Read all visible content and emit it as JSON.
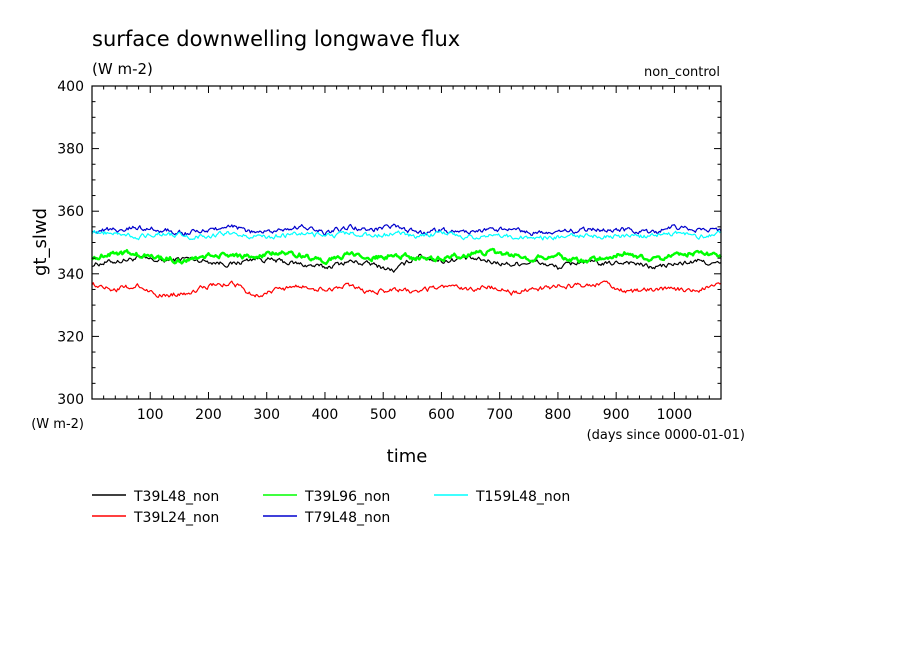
{
  "chart_data": {
    "type": "line",
    "title": "surface downwelling longwave flux",
    "subtitle": "(W m-2)",
    "corner_label": "non_control",
    "xlabel": "time",
    "xunit": "(days since 0000-01-01)",
    "ylabel": "gt_slwd",
    "yunit": "(W m-2)",
    "xlim": [
      0,
      1080
    ],
    "ylim": [
      300,
      400
    ],
    "x_ticks": [
      100,
      200,
      300,
      400,
      500,
      600,
      700,
      800,
      900,
      1000
    ],
    "y_ticks": [
      300,
      320,
      340,
      360,
      380,
      400
    ],
    "grid": false,
    "legend_position": "bottom",
    "series": [
      {
        "name": "T39L48_non",
        "color": "#000000",
        "x": [
          0,
          40,
          80,
          120,
          160,
          200,
          240,
          280,
          320,
          360,
          400,
          440,
          480,
          520,
          560,
          600,
          640,
          680,
          720,
          760,
          800,
          840,
          880,
          920,
          960,
          1000,
          1040,
          1080
        ],
        "values": [
          343,
          344,
          345,
          344,
          345,
          344,
          343,
          345,
          344,
          343,
          342,
          344,
          343,
          341,
          346,
          344,
          345,
          344,
          343,
          344,
          342,
          344,
          343,
          344,
          342,
          343,
          344,
          343
        ]
      },
      {
        "name": "T39L24_non",
        "color": "#ff0000",
        "x": [
          0,
          40,
          80,
          120,
          160,
          200,
          240,
          280,
          320,
          360,
          400,
          440,
          480,
          520,
          560,
          600,
          640,
          680,
          720,
          760,
          800,
          840,
          880,
          920,
          960,
          1000,
          1040,
          1080
        ],
        "values": [
          337,
          335,
          336,
          333,
          334,
          336,
          337,
          333,
          335,
          336,
          335,
          336,
          334,
          335,
          334,
          336,
          335,
          336,
          334,
          335,
          336,
          336,
          337,
          334,
          335,
          335,
          335,
          337
        ]
      },
      {
        "name": "T39L96_non",
        "color": "#00ff00",
        "x": [
          0,
          40,
          80,
          120,
          160,
          200,
          240,
          280,
          320,
          360,
          400,
          440,
          480,
          520,
          560,
          600,
          640,
          680,
          720,
          760,
          800,
          840,
          880,
          920,
          960,
          1000,
          1040,
          1080
        ],
        "values": [
          345,
          347,
          346,
          345,
          344,
          346,
          346,
          345,
          347,
          346,
          344,
          346,
          345,
          346,
          345,
          345,
          346,
          347,
          346,
          345,
          346,
          344,
          345,
          347,
          344,
          346,
          347,
          345
        ]
      },
      {
        "name": "T79L48_non",
        "color": "#0000cd",
        "x": [
          0,
          40,
          80,
          120,
          160,
          200,
          240,
          280,
          320,
          360,
          400,
          440,
          480,
          520,
          560,
          600,
          640,
          680,
          720,
          760,
          800,
          840,
          880,
          920,
          960,
          1000,
          1040,
          1080
        ],
        "values": [
          354,
          354,
          355,
          354,
          353,
          354,
          355,
          353,
          354,
          355,
          353,
          355,
          354,
          355,
          353,
          354,
          353,
          354,
          354,
          353,
          353,
          354,
          354,
          354,
          353,
          355,
          354,
          354
        ]
      },
      {
        "name": "T159L48_non",
        "color": "#00ffff",
        "x": [
          0,
          40,
          80,
          120,
          160,
          200,
          240,
          280,
          320,
          360,
          400,
          440,
          480,
          520,
          560,
          600,
          640,
          680,
          720,
          760,
          800,
          840,
          880,
          920,
          960,
          1000,
          1040,
          1080
        ],
        "values": [
          353,
          353,
          352,
          353,
          352,
          352,
          353,
          352,
          352,
          353,
          352,
          353,
          352,
          353,
          352,
          353,
          352,
          352,
          352,
          351,
          352,
          352,
          352,
          352,
          352,
          353,
          352,
          353
        ]
      }
    ]
  }
}
